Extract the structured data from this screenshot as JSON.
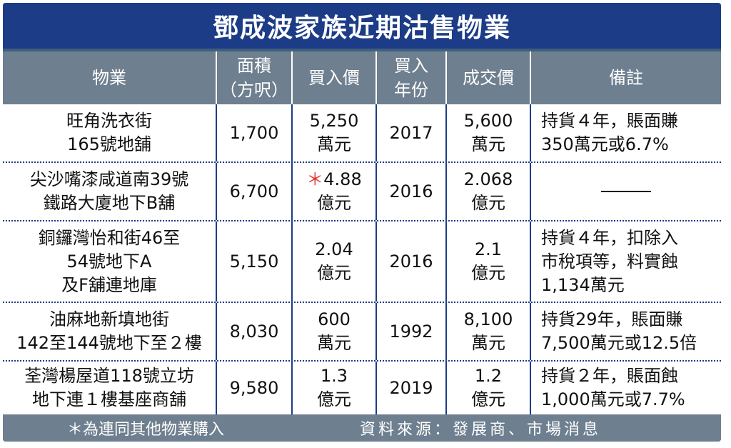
{
  "title": "鄧成波家族近期沽售物業",
  "headers": [
    "物業",
    "面積\n（方呎）",
    "買入價",
    "買入\n年份",
    "成交價",
    "備註"
  ],
  "rows": [
    {
      "property": [
        "旺角洗衣街",
        "165號地舖"
      ],
      "area": "1,700",
      "buy_price": [
        "5,250",
        "萬元"
      ],
      "buy_year": "2017",
      "sell_price": [
        "5,600",
        "萬元"
      ],
      "note": [
        "持貨４年，賬面賺",
        "350萬元或6.7%"
      ]
    },
    {
      "property": [
        "尖沙嘴漆咸道南39號",
        "鐵路大廈地下B舖"
      ],
      "area": "6,700",
      "buy_price_marker": "＊",
      "buy_price": [
        "4.88",
        "億元"
      ],
      "buy_year": "2016",
      "sell_price": [
        "2.068",
        "億元"
      ],
      "note": []
    },
    {
      "property": [
        "銅鑼灣怡和街46至",
        "54號地下A",
        "及F舖連地庫"
      ],
      "area": "5,150",
      "buy_price": [
        "2.04",
        "億元"
      ],
      "buy_year": "2016",
      "sell_price": [
        "2.1",
        "億元"
      ],
      "note": [
        "持貨４年，扣除入",
        "市稅項等，料實蝕",
        "1,134萬元"
      ]
    },
    {
      "property": [
        "油麻地新填地街",
        "142至144號地下至２樓"
      ],
      "area": "8,030",
      "buy_price": [
        "600",
        "萬元"
      ],
      "buy_year": "1992",
      "sell_price": [
        "8,100",
        "萬元"
      ],
      "note": [
        "持貨29年，賬面賺",
        "7,500萬元或12.5倍"
      ]
    },
    {
      "property": [
        "荃灣楊屋道118號立坊",
        "地下連１樓基座商舖"
      ],
      "area": "9,580",
      "buy_price": [
        "1.3",
        "億元"
      ],
      "buy_year": "2019",
      "sell_price": [
        "1.2",
        "億元"
      ],
      "note": [
        "持貨２年，賬面蝕",
        "1,000萬元或7.7%"
      ]
    }
  ],
  "footer": {
    "footnote": "＊為連同其他物業購入",
    "source": "資料來源：發展商、市場消息"
  }
}
